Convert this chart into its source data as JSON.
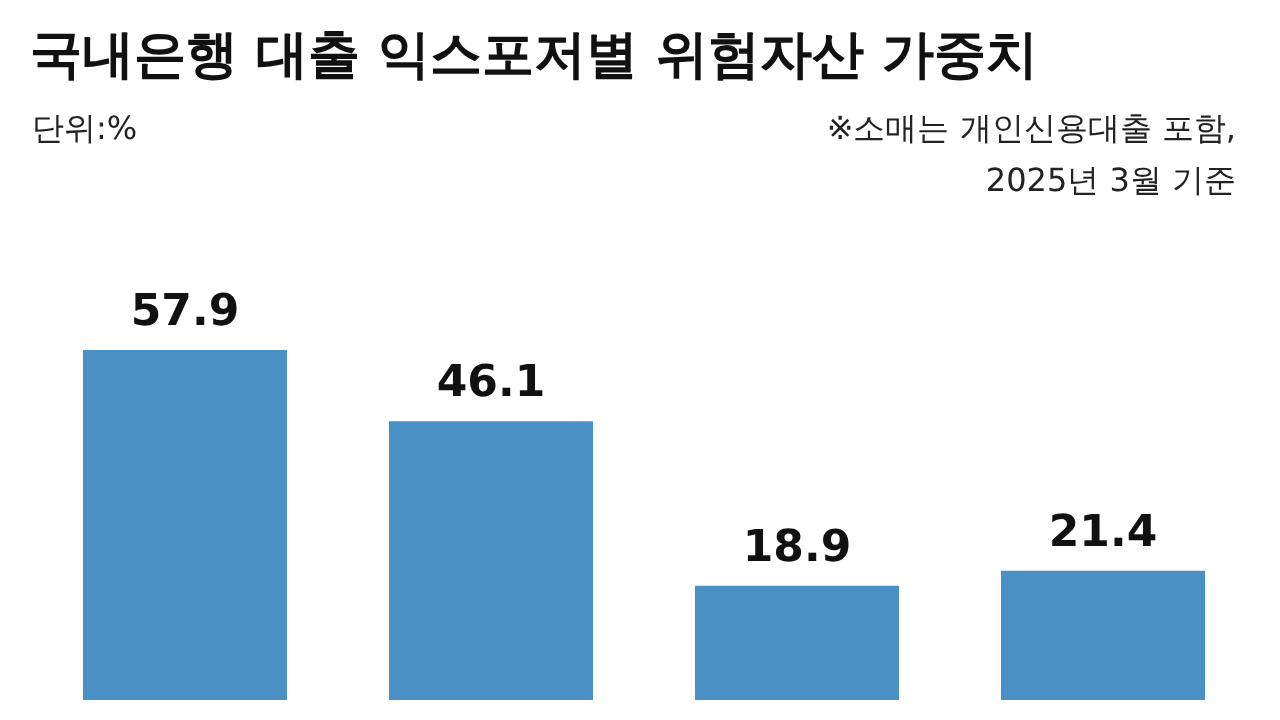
{
  "chart_data": {
    "type": "bar",
    "title": "국내은행 대출 익스포저별 위험자산 가중치",
    "annotations": [
      "단위:%",
      "※소매는 개인신용대출 포함,",
      "2025년 3월 기준"
    ],
    "categories": [
      null,
      null,
      null,
      null
    ],
    "values": [
      57.9,
      46.1,
      18.9,
      21.4
    ],
    "color": "#4a90c4",
    "data_labels": true
  }
}
